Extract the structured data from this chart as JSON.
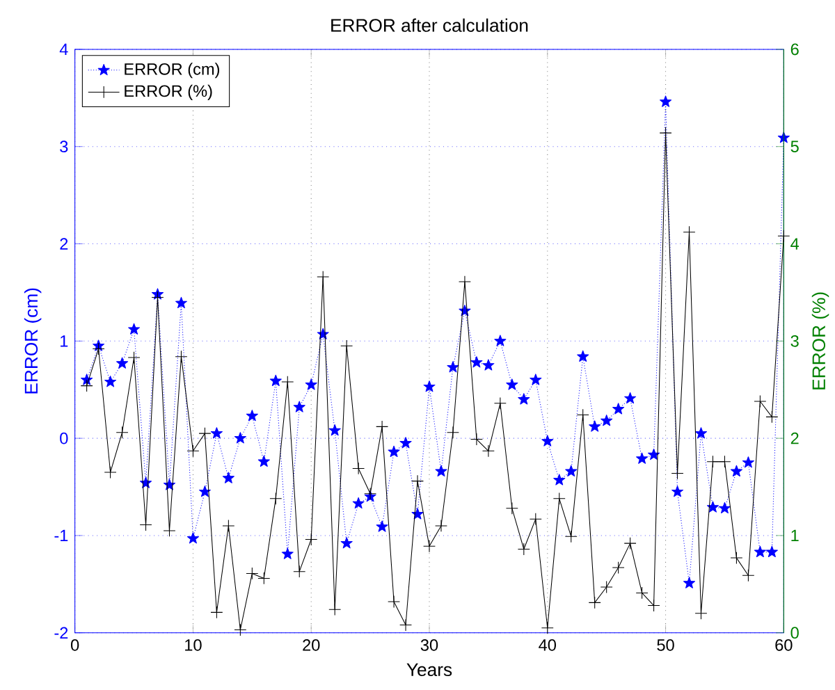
{
  "chart_data": {
    "type": "line",
    "title": "ERROR after calculation",
    "xlabel": "Years",
    "ylabel": "ERROR (cm)",
    "y2label": "ERROR (%)",
    "x": [
      1,
      2,
      3,
      4,
      5,
      6,
      7,
      8,
      9,
      10,
      11,
      12,
      13,
      14,
      15,
      16,
      17,
      18,
      19,
      20,
      21,
      22,
      23,
      24,
      25,
      26,
      27,
      28,
      29,
      30,
      31,
      32,
      33,
      34,
      35,
      36,
      37,
      38,
      39,
      40,
      41,
      42,
      43,
      44,
      45,
      46,
      47,
      48,
      49,
      50,
      51,
      52,
      53,
      54,
      55,
      56,
      57,
      58,
      59,
      60
    ],
    "xlim": [
      0,
      60
    ],
    "xticks": [
      0,
      10,
      20,
      30,
      40,
      50,
      60
    ],
    "ylim": [
      -2,
      4
    ],
    "yticks": [
      -2,
      -1,
      0,
      1,
      2,
      3,
      4
    ],
    "y2lim": [
      0,
      6
    ],
    "y2ticks": [
      0,
      1,
      2,
      3,
      4,
      5,
      6
    ],
    "grid": true,
    "legend": "top left",
    "series": [
      {
        "name": "ERROR (cm)",
        "color": "#0000ff",
        "marker": "star",
        "line_style": "dotted",
        "values": [
          0.6,
          0.95,
          0.58,
          0.77,
          1.12,
          -0.46,
          1.48,
          -0.48,
          1.39,
          -1.03,
          -0.55,
          0.05,
          -0.41,
          0.0,
          0.23,
          -0.24,
          0.59,
          -1.19,
          0.32,
          0.55,
          1.07,
          0.08,
          -1.08,
          -0.67,
          -0.6,
          -0.91,
          -0.14,
          -0.05,
          -0.78,
          0.53,
          -0.34,
          0.73,
          1.31,
          0.78,
          0.75,
          1.0,
          0.55,
          0.4,
          0.6,
          -0.03,
          -0.43,
          -0.34,
          0.84,
          0.12,
          0.18,
          0.3,
          0.41,
          -0.21,
          -0.17,
          3.46,
          -0.55,
          -1.49,
          0.05,
          -0.71,
          -0.72,
          -0.34,
          -0.25,
          -1.17,
          -1.17,
          3.09
        ]
      },
      {
        "name": "ERROR (%)",
        "color": "#000000",
        "marker": "cross",
        "line_style": "solid",
        "axis": "y2",
        "values": [
          2.54,
          2.92,
          1.65,
          2.06,
          2.83,
          1.11,
          3.45,
          1.05,
          2.84,
          1.87,
          2.05,
          0.21,
          1.1,
          0.03,
          0.61,
          0.56,
          1.38,
          2.58,
          0.63,
          0.96,
          3.66,
          0.24,
          2.95,
          1.69,
          1.43,
          2.12,
          0.32,
          0.08,
          1.56,
          0.89,
          1.1,
          2.06,
          3.61,
          1.99,
          1.87,
          2.36,
          1.28,
          0.86,
          1.17,
          0.05,
          1.38,
          0.99,
          2.24,
          0.31,
          0.47,
          0.67,
          0.92,
          0.41,
          0.28,
          5.14,
          1.64,
          4.12,
          0.2,
          1.76,
          1.76,
          0.77,
          0.59,
          2.38,
          2.22,
          4.08
        ]
      }
    ]
  }
}
